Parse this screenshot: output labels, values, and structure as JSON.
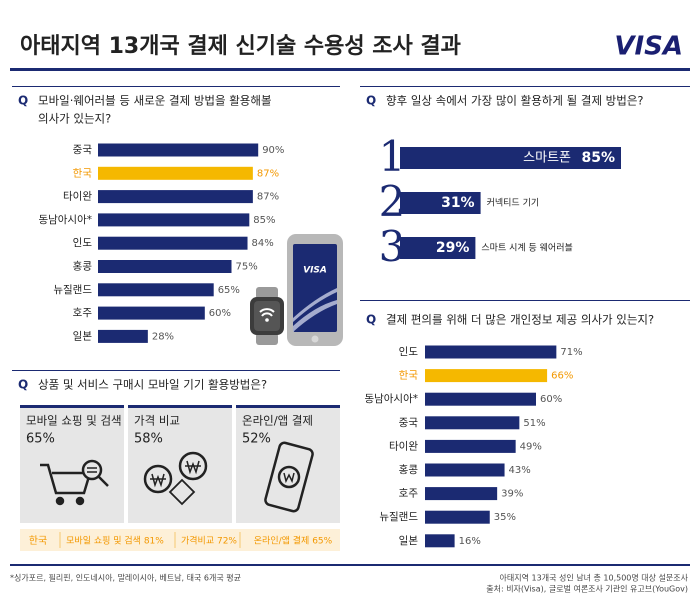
{
  "title": "아태지역 13개국 결제 신기술 수용성 조사 결과",
  "logo": "VISA",
  "phone_logo": "VISA",
  "chart_data": [
    {
      "type": "hbar",
      "question_mark": "Q",
      "question_lines": [
        "모바일·웨어러블 등 새로운 결제 방법을 활용해볼",
        "의사가 있는지?"
      ],
      "categories": [
        "중국",
        "한국",
        "타이완",
        "동남아시아*",
        "인도",
        "홍콩",
        "뉴질랜드",
        "호주",
        "일본"
      ],
      "values": [
        90,
        87,
        87,
        85,
        84,
        75,
        65,
        60,
        28
      ],
      "value_labels": [
        "90%",
        "87%",
        "87%",
        "85%",
        "84%",
        "75%",
        "65%",
        "60%",
        "28%"
      ],
      "colors": [
        "#1b2a72",
        "#f5b800",
        "#1b2a72",
        "#1b2a72",
        "#1b2a72",
        "#1b2a72",
        "#1b2a72",
        "#1b2a72",
        "#1b2a72"
      ],
      "label_colors": [
        "#222222",
        "#f39800",
        "#222222",
        "#222222",
        "#222222",
        "#222222",
        "#222222",
        "#222222",
        "#222222"
      ],
      "xlim": [
        0,
        100
      ]
    },
    {
      "type": "rank",
      "question_mark": "Q",
      "question_lines": [
        "향후 일상 속에서 가장 많이 활용하게 될 결제 방법은?"
      ],
      "ranks": [
        1,
        2,
        3
      ],
      "categories": [
        "스마트폰",
        "커넥티드 기기",
        "스마트 시계 등 웨어러블"
      ],
      "values": [
        85,
        31,
        29
      ],
      "value_labels": [
        "85%",
        "31%",
        "29%"
      ],
      "color": "#1b2a72",
      "xlim": [
        0,
        100
      ]
    },
    {
      "type": "hbar",
      "question_mark": "Q",
      "question_lines": [
        "결제 편의를 위해 더 많은 개인정보 제공 의사가 있는지?"
      ],
      "categories": [
        "인도",
        "한국",
        "동남아시아*",
        "중국",
        "타이완",
        "홍콩",
        "호주",
        "뉴질랜드",
        "일본"
      ],
      "values": [
        71,
        66,
        60,
        51,
        49,
        43,
        39,
        35,
        16
      ],
      "value_labels": [
        "71%",
        "66%",
        "60%",
        "51%",
        "49%",
        "43%",
        "39%",
        "35%",
        "16%"
      ],
      "colors": [
        "#1b2a72",
        "#f5b800",
        "#1b2a72",
        "#1b2a72",
        "#1b2a72",
        "#1b2a72",
        "#1b2a72",
        "#1b2a72",
        "#1b2a72"
      ],
      "label_colors": [
        "#222222",
        "#f39800",
        "#222222",
        "#222222",
        "#222222",
        "#222222",
        "#222222",
        "#222222",
        "#222222"
      ],
      "xlim": [
        0,
        100
      ]
    },
    {
      "type": "cards",
      "question_mark": "Q",
      "question_lines": [
        "상품 및 서비스 구매시 모바일 기기 활용방법은?"
      ],
      "categories": [
        "모바일 쇼핑 및 검색",
        "가격 비교",
        "온라인/앱 결제"
      ],
      "values": [
        65,
        58,
        52
      ],
      "value_labels": [
        "65%",
        "58%",
        "52%"
      ],
      "highlight": {
        "label": "한국",
        "values": [
          81,
          72,
          65
        ],
        "value_labels": [
          "모바일 쇼핑 및 검색 81%",
          "가격비교 72%",
          "온라인/앱 결제 65%"
        ]
      }
    }
  ],
  "footnote": "*싱가포르, 필리핀, 인도네시아, 말레이시아, 베트남, 태국 6개국 평균",
  "source_lines": [
    "아태지역 13개국 성인 남녀 총 10,500명 대상 설문조사",
    "출처: 비자(Visa), 글로벌 여론조사 기관인 유고브(YouGov)"
  ]
}
